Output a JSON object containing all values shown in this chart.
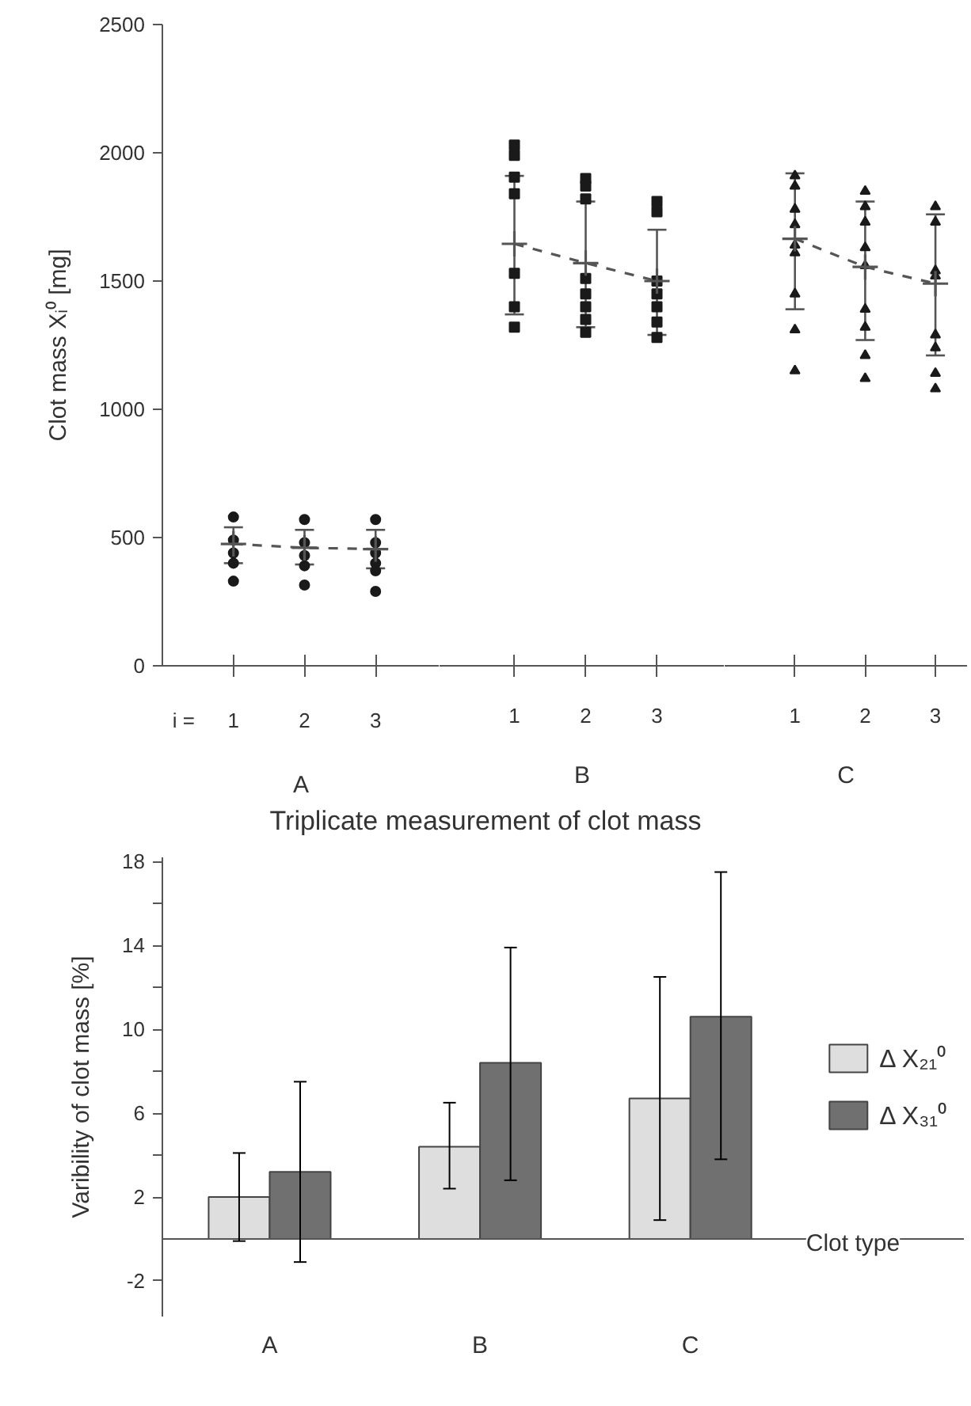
{
  "chart_data": [
    {
      "type": "scatter",
      "ylabel": "Clot mass Xᵢ⁰ [mg]",
      "xlabel": "A",
      "annotations": [
        "i ="
      ],
      "xlim": [
        0,
        3.9
      ],
      "xticks": [
        1,
        2,
        3
      ],
      "ylim": [
        0,
        2500
      ],
      "yticks": [
        0,
        500,
        1000,
        1500,
        2000,
        2500
      ],
      "grid": false,
      "series": [
        {
          "type": "scatter",
          "marker": "circle",
          "color": "#1a1a1a",
          "x": [
            1,
            1,
            1,
            1,
            1,
            2,
            2,
            2,
            2,
            2,
            3,
            3,
            3,
            3,
            3,
            3
          ],
          "values": [
            580,
            490,
            440,
            400,
            330,
            570,
            480,
            430,
            390,
            315,
            570,
            480,
            440,
            400,
            370,
            290
          ]
        },
        {
          "type": "line",
          "line_style": "dashed",
          "marker": "cross",
          "color": "#555555",
          "x": [
            1,
            2,
            3
          ],
          "values": [
            475,
            460,
            455
          ],
          "errors": [
            [
              400,
              540
            ],
            [
              395,
              530
            ],
            [
              380,
              530
            ]
          ]
        }
      ]
    },
    {
      "type": "scatter",
      "xlabel": "B",
      "annotations": [
        "Triplicate measurement of clot mass"
      ],
      "tick_labels": "x",
      "xlim": [
        -0.05,
        3.95
      ],
      "xticks": [
        1,
        2,
        3
      ],
      "ylim": [
        0,
        2500
      ],
      "grid": false,
      "series": [
        {
          "type": "scatter",
          "marker": "square",
          "color": "#1a1a1a",
          "x": [
            1,
            1,
            1,
            1,
            1,
            1,
            1,
            2,
            2,
            2,
            2,
            2,
            2,
            2,
            2,
            3,
            3,
            3,
            3,
            3,
            3,
            3
          ],
          "values": [
            2030,
            1990,
            1905,
            1840,
            1530,
            1400,
            1320,
            1900,
            1870,
            1820,
            1510,
            1450,
            1400,
            1350,
            1300,
            1810,
            1770,
            1500,
            1450,
            1400,
            1340,
            1280
          ]
        },
        {
          "type": "line",
          "line_style": "dashed",
          "marker": "cross",
          "color": "#555555",
          "x": [
            1,
            2,
            3
          ],
          "values": [
            1645,
            1570,
            1500
          ],
          "errors": [
            [
              1370,
              1910
            ],
            [
              1320,
              1810
            ],
            [
              1290,
              1700
            ]
          ]
        }
      ]
    },
    {
      "type": "scatter",
      "xlabel": "C",
      "tick_labels": "x",
      "xlim": [
        0,
        3.45
      ],
      "xticks": [
        1,
        2,
        3
      ],
      "ylim": [
        0,
        2500
      ],
      "grid": false,
      "series": [
        {
          "type": "scatter",
          "marker": "triangle",
          "color": "#1a1a1a",
          "x": [
            1,
            1,
            1,
            1,
            1,
            1,
            1,
            1,
            1,
            2,
            2,
            2,
            2,
            2,
            2,
            2,
            2,
            2,
            3,
            3,
            3,
            3,
            3,
            3,
            3,
            3
          ],
          "values": [
            1910,
            1870,
            1780,
            1720,
            1640,
            1610,
            1450,
            1310,
            1150,
            1850,
            1790,
            1730,
            1630,
            1560,
            1390,
            1320,
            1210,
            1120,
            1790,
            1730,
            1540,
            1520,
            1290,
            1240,
            1140,
            1080
          ]
        },
        {
          "type": "line",
          "line_style": "dashed",
          "marker": "cross",
          "color": "#555555",
          "x": [
            1,
            2,
            3
          ],
          "values": [
            1665,
            1555,
            1490
          ],
          "errors": [
            [
              1390,
              1920
            ],
            [
              1270,
              1810
            ],
            [
              1210,
              1760
            ]
          ]
        }
      ]
    },
    {
      "type": "bar",
      "ylabel": "Varibility of clot mass [%]",
      "xlabel": "Clot type",
      "categories": [
        "A",
        "B",
        "C"
      ],
      "ylim": [
        -3.7,
        18.2
      ],
      "yticks": [
        -2,
        2,
        {
          "value": 4,
          "label": null
        },
        6,
        {
          "value": 8,
          "label": null
        },
        10,
        {
          "value": 12,
          "label": null
        },
        14,
        {
          "value": 16,
          "label": null
        },
        18
      ],
      "grid": false,
      "legend": "right",
      "series": [
        {
          "name": "Δ X₂₁⁰",
          "color": "#dedede",
          "values": [
            2.0,
            4.4,
            6.7
          ],
          "errors": [
            2.1,
            [
              2.4,
              6.5
            ],
            [
              0.9,
              12.5
            ]
          ]
        },
        {
          "name": "Δ X₃₁⁰",
          "color": "#707070",
          "values": [
            3.2,
            8.4,
            10.6
          ],
          "errors": [
            [
              -1.1,
              7.5
            ],
            [
              2.8,
              13.9
            ],
            [
              3.8,
              17.5
            ]
          ]
        }
      ]
    }
  ]
}
